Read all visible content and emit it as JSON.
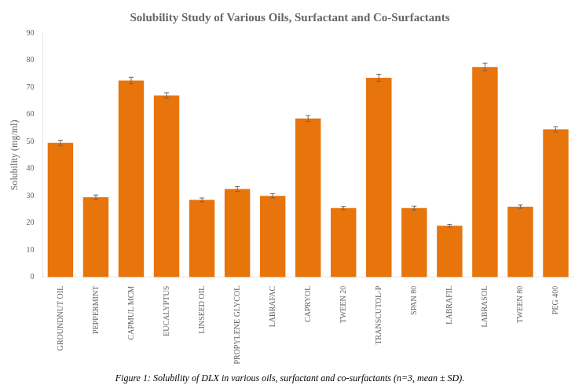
{
  "chart_data": {
    "type": "bar",
    "title": "Solubility Study of Various Oils, Surfactant and Co-Surfactants",
    "ylabel": "Solubility (mg/ml)",
    "caption": "Figure 1: Solubility of DLX in various oils, surfactant and co-surfactants (n=3, mean ± SD).",
    "categories": [
      "GROUNDNUT OIL",
      "PEPPERMINT",
      "CAPMUL MCM",
      "EUCALYPTUS",
      "LINSEED OIL",
      "PROPYLENE GLYCOL",
      "LABRAFAC",
      "CAPRYOL",
      "TWEEN 20",
      "TRANSCUTOL-P",
      "SPAN 80",
      "LABRAFIL",
      "LABRASOL",
      "TWEEN 80",
      "PEG 400"
    ],
    "values": [
      49.5,
      29.5,
      72.5,
      67.0,
      28.5,
      32.5,
      30.0,
      58.5,
      25.5,
      73.5,
      25.5,
      19.0,
      77.5,
      26.0,
      54.5
    ],
    "errors": [
      1.0,
      0.8,
      1.2,
      1.0,
      0.7,
      0.9,
      0.8,
      1.1,
      0.6,
      1.3,
      0.7,
      0.5,
      1.4,
      0.6,
      1.0
    ],
    "color": "#E8740C",
    "ylim": [
      0,
      90
    ],
    "yticks": [
      0,
      10,
      20,
      30,
      40,
      50,
      60,
      70,
      80,
      90
    ],
    "grid": false
  }
}
